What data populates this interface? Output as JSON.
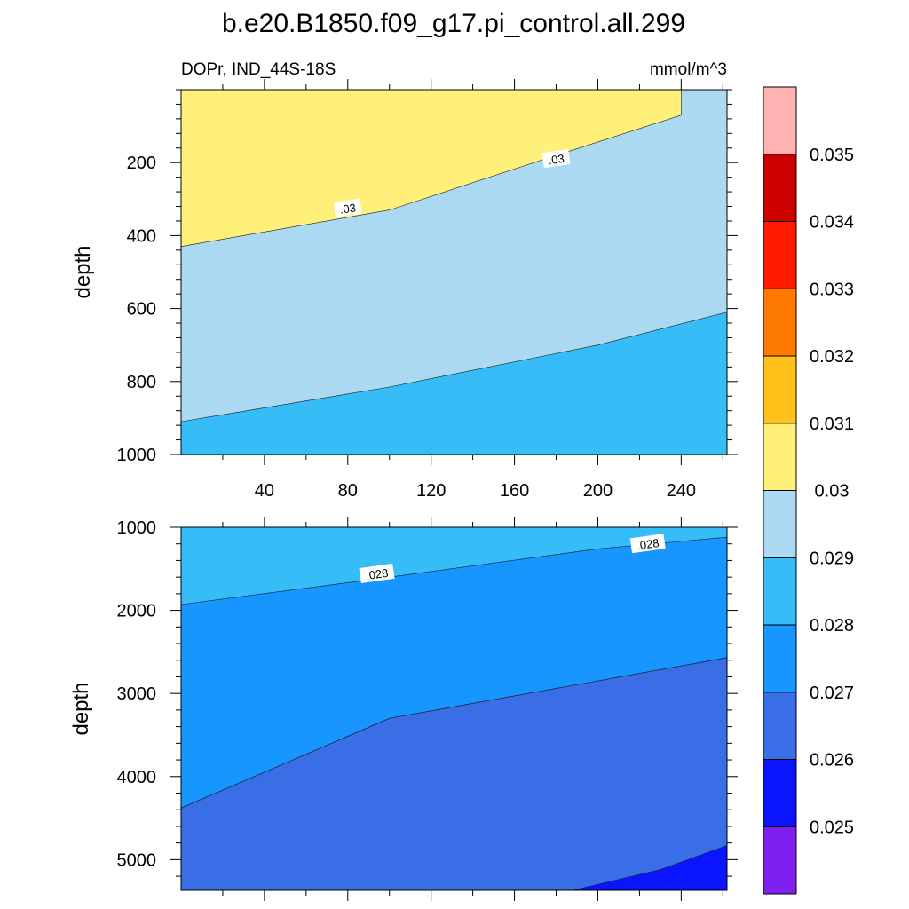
{
  "chart_data": {
    "type": "contour",
    "title": "b.e20.B1850.f09_g17.pi_control.all.299",
    "left_string": "DOPr, IND_44S-18S",
    "right_string": "mmol/m^3",
    "ylabel": "depth",
    "xlim": [
      0,
      262
    ],
    "x_ticks": [
      40,
      80,
      120,
      160,
      200,
      240
    ],
    "colorbar": {
      "levels": [
        "0.025",
        "0.026",
        "0.027",
        "0.028",
        "0.029",
        "0.03",
        "0.031",
        "0.032",
        "0.033",
        "0.034",
        "0.035"
      ],
      "colors": [
        "#7f20f0",
        "#0a14ff",
        "#3a6ee6",
        "#1796ff",
        "#36bdf7",
        "#abd9f2",
        "#fff07a",
        "#ffc11a",
        "#ff7a00",
        "#ff1a00",
        "#cc0000",
        "#ffb3b3"
      ]
    },
    "panels": [
      {
        "name": "upper",
        "ylim": [
          0,
          1000
        ],
        "y_ticks": [
          200,
          400,
          600,
          800,
          1000
        ],
        "regions": [
          {
            "interval": "0.029-0.03",
            "color": "#abd9f2"
          },
          {
            "interval": "0.03-0.031",
            "color": "#fff07a",
            "boundary": [
              [
                0,
                430
              ],
              [
                100,
                330
              ],
              [
                180,
                180
              ],
              [
                240,
                70
              ],
              [
                240,
                0
              ],
              [
                0,
                0
              ]
            ]
          },
          {
            "interval": "0.028-0.029",
            "color": "#36bdf7",
            "boundary": [
              [
                0,
                910
              ],
              [
                100,
                815
              ],
              [
                200,
                700
              ],
              [
                262,
                610
              ],
              [
                262,
                1000
              ],
              [
                0,
                1000
              ]
            ]
          }
        ],
        "contour_labels": [
          {
            "text": ".03",
            "x": 80,
            "y": 325
          },
          {
            "text": ".03",
            "x": 180,
            "y": 190
          }
        ]
      },
      {
        "name": "lower",
        "ylim": [
          1000,
          5370
        ],
        "y_ticks": [
          1000,
          2000,
          3000,
          4000,
          5000
        ],
        "regions": [
          {
            "interval": "0.028-0.029",
            "color": "#36bdf7"
          },
          {
            "interval": "0.027-0.028",
            "color": "#1796ff",
            "boundary": [
              [
                0,
                1930
              ],
              [
                100,
                1600
              ],
              [
                200,
                1260
              ],
              [
                262,
                1120
              ],
              [
                262,
                2570
              ],
              [
                100,
                3300
              ],
              [
                0,
                4380
              ]
            ]
          },
          {
            "interval": "0.026-0.027",
            "color": "#3a6ee6",
            "boundary": [
              [
                0,
                4380
              ],
              [
                100,
                3300
              ],
              [
                262,
                2570
              ],
              [
                262,
                5370
              ],
              [
                0,
                5370
              ]
            ]
          },
          {
            "interval": "0.025-0.026",
            "color": "#0a14ff",
            "boundary": [
              [
                188,
                5370
              ],
              [
                230,
                5120
              ],
              [
                262,
                4830
              ],
              [
                262,
                5370
              ]
            ]
          }
        ],
        "contour_labels": [
          {
            "text": ".028",
            "x": 94,
            "y": 1560
          },
          {
            "text": ".028",
            "x": 224,
            "y": 1200
          }
        ]
      }
    ]
  }
}
